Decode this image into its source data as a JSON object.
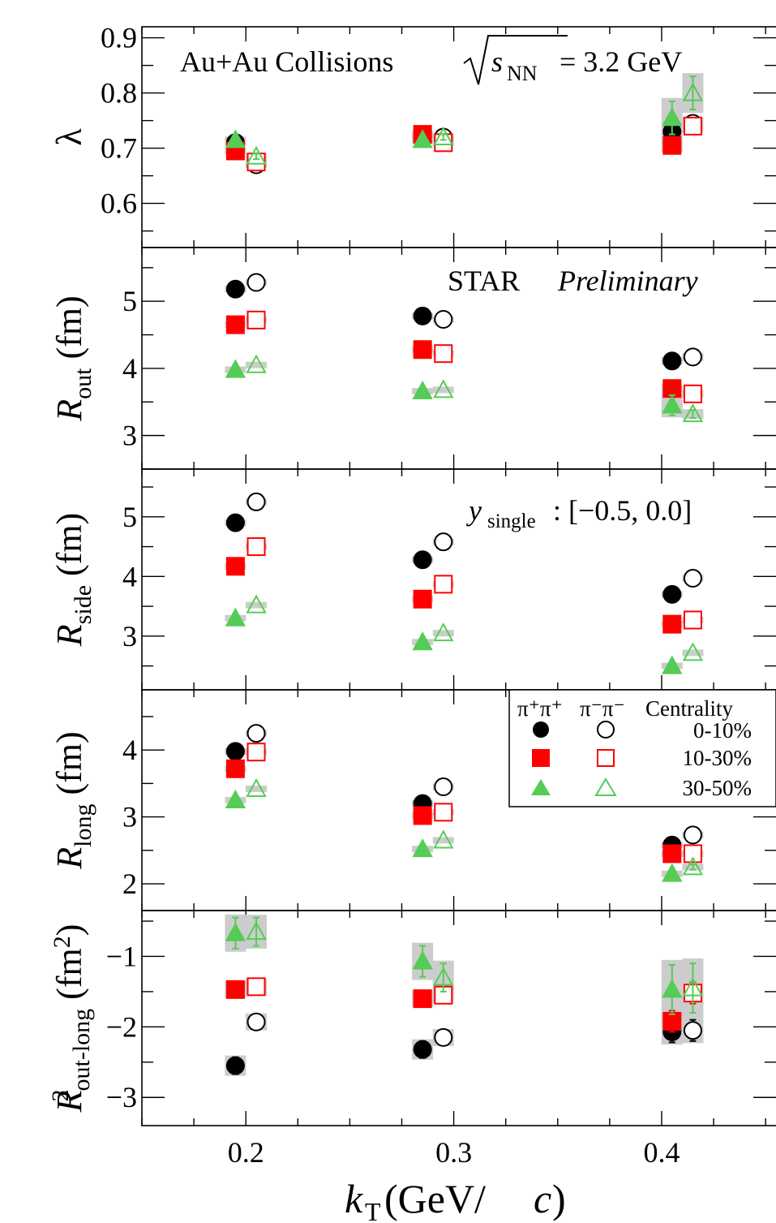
{
  "chart_data": {
    "type": "scatter",
    "x_axis": {
      "label_symbol": "k",
      "label_sub": "T",
      "label_unit": " (GeV/",
      "label_unit_c": "c",
      "label_close": ")",
      "range": [
        0.15,
        0.455
      ],
      "ticks": [
        0.2,
        0.3,
        0.4
      ],
      "tick_labels": [
        "0.2",
        "0.3",
        "0.4"
      ]
    },
    "annotations": {
      "title_left": "Au+Au Collisions ",
      "title_s": "s",
      "title_nn": "NN",
      "title_right": " = 3.2 GeV",
      "star": "STAR ",
      "star_italic": "Preliminary",
      "y_sym": "y",
      "y_sub": "single",
      "y_range": ": [−0.5, 0.0]"
    },
    "legend": {
      "header_pp": "π⁺π⁺",
      "header_mm": "π⁻π⁻",
      "header_cent": "Centrality",
      "entries": [
        "0-10%",
        "10-30%",
        "30-50%"
      ],
      "colors": [
        "#000000",
        "#ff0000",
        "#55cc55"
      ]
    },
    "panels": [
      {
        "id": "lambda",
        "ylabel_main": "λ",
        "ylabel_sub": "",
        "ylabel_unit": "",
        "ylim": [
          0.52,
          0.92
        ],
        "ticks": [
          0.6,
          0.7,
          0.8,
          0.9
        ],
        "tick_labels": [
          "0.6",
          "0.7",
          "0.8",
          "0.9"
        ],
        "series": [
          {
            "name": "π⁺π⁺ 0-10%",
            "centrality": "0-10%",
            "charge": "pp",
            "x": [
              0.195,
              0.285,
              0.405
            ],
            "y": [
              0.71,
              0.72,
              0.73
            ],
            "err": [
              0.005,
              0.005,
              0.01
            ]
          },
          {
            "name": "π⁻π⁻ 0-10%",
            "centrality": "0-10%",
            "charge": "mm",
            "x": [
              0.205,
              0.295,
              0.415
            ],
            "y": [
              0.67,
              0.72,
              0.745
            ],
            "err": [
              0.005,
              0.005,
              0.01
            ]
          },
          {
            "name": "π⁺π⁺ 10-30%",
            "centrality": "10-30%",
            "charge": "pp",
            "x": [
              0.195,
              0.285,
              0.405
            ],
            "y": [
              0.695,
              0.725,
              0.705
            ],
            "err": [
              0.005,
              0.005,
              0.01
            ]
          },
          {
            "name": "π⁻π⁻ 10-30%",
            "centrality": "10-30%",
            "charge": "mm",
            "x": [
              0.205,
              0.295,
              0.415
            ],
            "y": [
              0.675,
              0.71,
              0.74
            ],
            "err": [
              0.005,
              0.005,
              0.01
            ]
          },
          {
            "name": "π⁺π⁺ 30-50%",
            "centrality": "30-50%",
            "charge": "pp",
            "x": [
              0.195,
              0.285,
              0.405
            ],
            "y": [
              0.715,
              0.715,
              0.755
            ],
            "err": [
              0.005,
              0.005,
              0.03
            ]
          },
          {
            "name": "π⁻π⁻ 30-50%",
            "centrality": "30-50%",
            "charge": "mm",
            "x": [
              0.205,
              0.295,
              0.415
            ],
            "y": [
              0.685,
              0.72,
              0.8
            ],
            "err": [
              0.005,
              0.005,
              0.03
            ]
          }
        ]
      },
      {
        "id": "rout",
        "ylabel_main": "R",
        "ylabel_sub": "out",
        "ylabel_unit": " (fm)",
        "ylim": [
          2.5,
          5.8
        ],
        "ticks": [
          3,
          4,
          5
        ],
        "tick_labels": [
          "3",
          "4",
          "5"
        ],
        "series": [
          {
            "name": "π⁺π⁺ 0-10%",
            "centrality": "0-10%",
            "charge": "pp",
            "x": [
              0.195,
              0.285,
              0.405
            ],
            "y": [
              5.18,
              4.78,
              4.11
            ],
            "err": [
              0.03,
              0.03,
              0.05
            ]
          },
          {
            "name": "π⁻π⁻ 0-10%",
            "centrality": "0-10%",
            "charge": "mm",
            "x": [
              0.205,
              0.295,
              0.415
            ],
            "y": [
              5.28,
              4.73,
              4.17
            ],
            "err": [
              0.03,
              0.03,
              0.05
            ]
          },
          {
            "name": "π⁺π⁺ 10-30%",
            "centrality": "10-30%",
            "charge": "pp",
            "x": [
              0.195,
              0.285,
              0.405
            ],
            "y": [
              4.65,
              4.28,
              3.7
            ],
            "err": [
              0.03,
              0.03,
              0.05
            ]
          },
          {
            "name": "π⁻π⁻ 10-30%",
            "centrality": "10-30%",
            "charge": "mm",
            "x": [
              0.205,
              0.295,
              0.415
            ],
            "y": [
              4.72,
              4.22,
              3.62
            ],
            "err": [
              0.03,
              0.03,
              0.05
            ]
          },
          {
            "name": "π⁺π⁺ 30-50%",
            "centrality": "30-50%",
            "charge": "pp",
            "x": [
              0.195,
              0.285,
              0.405
            ],
            "y": [
              3.98,
              3.66,
              3.45
            ],
            "err": [
              0.03,
              0.03,
              0.15
            ]
          },
          {
            "name": "π⁻π⁻ 30-50%",
            "centrality": "30-50%",
            "charge": "mm",
            "x": [
              0.205,
              0.295,
              0.415
            ],
            "y": [
              4.05,
              3.68,
              3.32
            ],
            "err": [
              0.03,
              0.03,
              0.06
            ]
          }
        ]
      },
      {
        "id": "rside",
        "ylabel_main": "R",
        "ylabel_sub": "side",
        "ylabel_unit": " (fm)",
        "ylim": [
          2.1,
          5.8
        ],
        "ticks": [
          3,
          4,
          5
        ],
        "tick_labels": [
          "3",
          "4",
          "5"
        ],
        "series": [
          {
            "name": "π⁺π⁺ 0-10%",
            "centrality": "0-10%",
            "charge": "pp",
            "x": [
              0.195,
              0.285,
              0.405
            ],
            "y": [
              4.9,
              4.28,
              3.7
            ],
            "err": [
              0.03,
              0.03,
              0.04
            ]
          },
          {
            "name": "π⁻π⁻ 0-10%",
            "centrality": "0-10%",
            "charge": "mm",
            "x": [
              0.205,
              0.295,
              0.415
            ],
            "y": [
              5.25,
              4.58,
              3.97
            ],
            "err": [
              0.03,
              0.03,
              0.04
            ]
          },
          {
            "name": "π⁺π⁺ 10-30%",
            "centrality": "10-30%",
            "charge": "pp",
            "x": [
              0.195,
              0.285,
              0.405
            ],
            "y": [
              4.17,
              3.62,
              3.2
            ],
            "err": [
              0.03,
              0.03,
              0.04
            ]
          },
          {
            "name": "π⁻π⁻ 10-30%",
            "centrality": "10-30%",
            "charge": "mm",
            "x": [
              0.205,
              0.295,
              0.415
            ],
            "y": [
              4.5,
              3.87,
              3.27
            ],
            "err": [
              0.03,
              0.03,
              0.04
            ]
          },
          {
            "name": "π⁺π⁺ 30-50%",
            "centrality": "30-50%",
            "charge": "pp",
            "x": [
              0.195,
              0.285,
              0.405
            ],
            "y": [
              3.3,
              2.9,
              2.5
            ],
            "err": [
              0.03,
              0.03,
              0.04
            ]
          },
          {
            "name": "π⁻π⁻ 30-50%",
            "centrality": "30-50%",
            "charge": "mm",
            "x": [
              0.205,
              0.295,
              0.415
            ],
            "y": [
              3.52,
              3.05,
              2.72
            ],
            "err": [
              0.03,
              0.03,
              0.04
            ]
          }
        ]
      },
      {
        "id": "rlong",
        "ylabel_main": "R",
        "ylabel_sub": "long",
        "ylabel_unit": " (fm)",
        "ylim": [
          1.6,
          4.9
        ],
        "ticks": [
          2,
          3,
          4
        ],
        "tick_labels": [
          "2",
          "3",
          "4"
        ],
        "series": [
          {
            "name": "π⁺π⁺ 0-10%",
            "centrality": "0-10%",
            "charge": "pp",
            "x": [
              0.195,
              0.285,
              0.405
            ],
            "y": [
              3.98,
              3.2,
              2.58
            ],
            "err": [
              0.03,
              0.03,
              0.04
            ]
          },
          {
            "name": "π⁻π⁻ 0-10%",
            "centrality": "0-10%",
            "charge": "mm",
            "x": [
              0.205,
              0.295,
              0.415
            ],
            "y": [
              4.25,
              3.45,
              2.73
            ],
            "err": [
              0.03,
              0.03,
              0.04
            ]
          },
          {
            "name": "π⁺π⁺ 10-30%",
            "centrality": "10-30%",
            "charge": "pp",
            "x": [
              0.195,
              0.285,
              0.405
            ],
            "y": [
              3.72,
              3.02,
              2.45
            ],
            "err": [
              0.03,
              0.03,
              0.04
            ]
          },
          {
            "name": "π⁻π⁻ 10-30%",
            "centrality": "10-30%",
            "charge": "mm",
            "x": [
              0.205,
              0.295,
              0.415
            ],
            "y": [
              3.97,
              3.07,
              2.45
            ],
            "err": [
              0.03,
              0.03,
              0.04
            ]
          },
          {
            "name": "π⁺π⁺ 30-50%",
            "centrality": "30-50%",
            "charge": "pp",
            "x": [
              0.195,
              0.285,
              0.405
            ],
            "y": [
              3.25,
              2.52,
              2.15
            ],
            "err": [
              0.03,
              0.03,
              0.04
            ]
          },
          {
            "name": "π⁻π⁻ 30-50%",
            "centrality": "30-50%",
            "charge": "mm",
            "x": [
              0.205,
              0.295,
              0.415
            ],
            "y": [
              3.42,
              2.65,
              2.25
            ],
            "err": [
              0.03,
              0.03,
              0.04
            ]
          }
        ]
      },
      {
        "id": "routlong",
        "ylabel_main": "R",
        "ylabel_sub": "out-long",
        "ylabel_sup": "2",
        "ylabel_unit": " (fm",
        "ylabel_unit_sup": "2",
        "ylabel_unit_close": ")",
        "ylim": [
          -3.4,
          -0.35
        ],
        "ticks": [
          -1,
          -2,
          -3
        ],
        "tick_labels": [
          "−1",
          "−2",
          "−3"
        ],
        "series": [
          {
            "name": "π⁺π⁺ 0-10%",
            "centrality": "0-10%",
            "charge": "pp",
            "x": [
              0.195,
              0.285,
              0.405
            ],
            "y": [
              -2.55,
              -2.32,
              -2.07
            ],
            "err": [
              0.12,
              0.12,
              0.15
            ]
          },
          {
            "name": "π⁻π⁻ 0-10%",
            "centrality": "0-10%",
            "charge": "mm",
            "x": [
              0.205,
              0.295,
              0.415
            ],
            "y": [
              -1.93,
              -2.15,
              -2.05
            ],
            "err": [
              0.1,
              0.1,
              0.15
            ]
          },
          {
            "name": "π⁺π⁺ 10-30%",
            "centrality": "10-30%",
            "charge": "pp",
            "x": [
              0.195,
              0.285,
              0.405
            ],
            "y": [
              -1.47,
              -1.6,
              -1.92
            ],
            "err": [
              0.1,
              0.1,
              0.15
            ]
          },
          {
            "name": "π⁻π⁻ 10-30%",
            "centrality": "10-30%",
            "charge": "mm",
            "x": [
              0.205,
              0.295,
              0.415
            ],
            "y": [
              -1.43,
              -1.55,
              -1.52
            ],
            "err": [
              0.1,
              0.1,
              0.15
            ]
          },
          {
            "name": "π⁺π⁺ 30-50%",
            "centrality": "30-50%",
            "charge": "pp",
            "x": [
              0.195,
              0.285,
              0.405
            ],
            "y": [
              -0.67,
              -1.07,
              -1.47
            ],
            "err": [
              0.22,
              0.22,
              0.35
            ]
          },
          {
            "name": "π⁻π⁻ 30-50%",
            "centrality": "30-50%",
            "charge": "mm",
            "x": [
              0.205,
              0.295,
              0.415
            ],
            "y": [
              -0.65,
              -1.3,
              -1.45
            ],
            "err": [
              0.2,
              0.2,
              0.35
            ]
          }
        ]
      }
    ]
  }
}
